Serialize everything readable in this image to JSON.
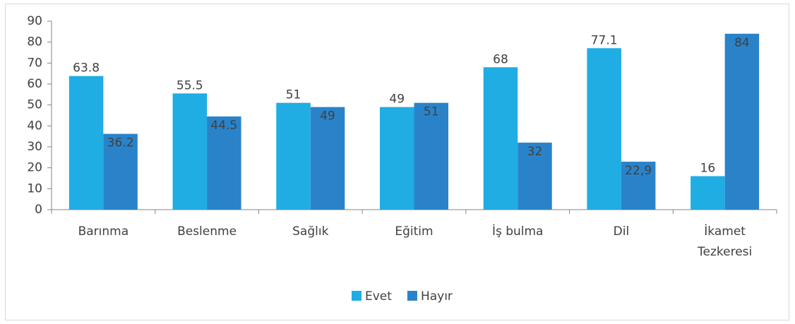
{
  "chart_data": {
    "type": "bar",
    "categories": [
      "Barınma",
      "Beslenme",
      "Sağlık",
      "Eğitim",
      "İş bulma",
      "Dil",
      "İkamet Tezkeresi"
    ],
    "series": [
      {
        "name": "Evet",
        "color": "#1fade3",
        "values": [
          63.8,
          55.5,
          51,
          49,
          68,
          77.1,
          16
        ]
      },
      {
        "name": "Hayır",
        "color": "#2a83c9",
        "values": [
          36.2,
          44.5,
          49,
          51,
          32,
          22.9,
          84
        ],
        "value_labels": [
          "36.2",
          "44.5",
          "49",
          "51",
          "32",
          "22,9",
          "84"
        ]
      }
    ],
    "ylim": [
      0,
      90
    ],
    "yticks": [
      0,
      10,
      20,
      30,
      40,
      50,
      60,
      70,
      80,
      90
    ],
    "legend": "bottom"
  }
}
